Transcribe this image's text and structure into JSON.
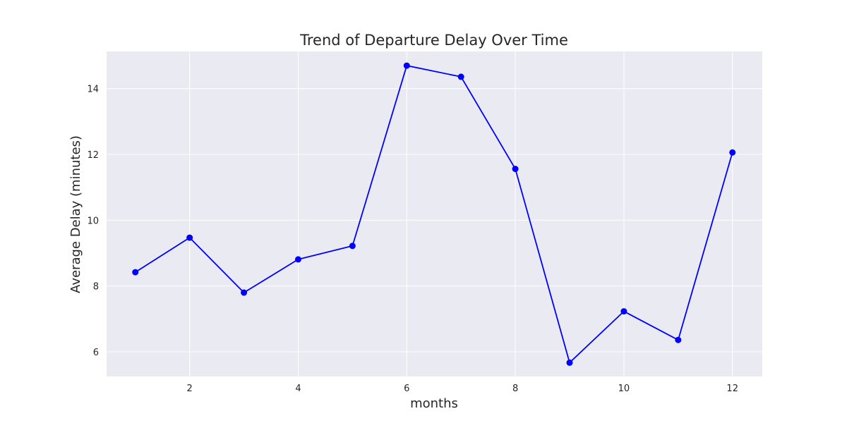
{
  "chart_data": {
    "type": "line",
    "title": "Trend of Departure Delay Over Time",
    "xlabel": "months",
    "ylabel": "Average Delay (minutes)",
    "x": [
      1,
      2,
      3,
      4,
      5,
      6,
      7,
      8,
      9,
      10,
      11,
      12
    ],
    "series": [
      {
        "values": [
          8.42,
          9.47,
          7.8,
          8.81,
          9.22,
          14.7,
          14.36,
          11.56,
          5.67,
          7.23,
          6.36,
          12.06
        ]
      }
    ],
    "xlim": [
      0.47,
      12.55
    ],
    "ylim": [
      5.25,
      15.13
    ],
    "xticks": [
      2,
      4,
      6,
      8,
      10,
      12
    ],
    "yticks": [
      6,
      8,
      10,
      12,
      14
    ],
    "xtick_labels": [
      "2",
      "4",
      "6",
      "8",
      "10",
      "12"
    ],
    "ytick_labels": [
      "6",
      "8",
      "10",
      "12",
      "14"
    ],
    "grid": true,
    "colors": {
      "line": "#0000ff",
      "marker": "#0000ff",
      "plot_background": "#eaeaf2",
      "grid": "#ffffff",
      "text": "#262626"
    }
  }
}
